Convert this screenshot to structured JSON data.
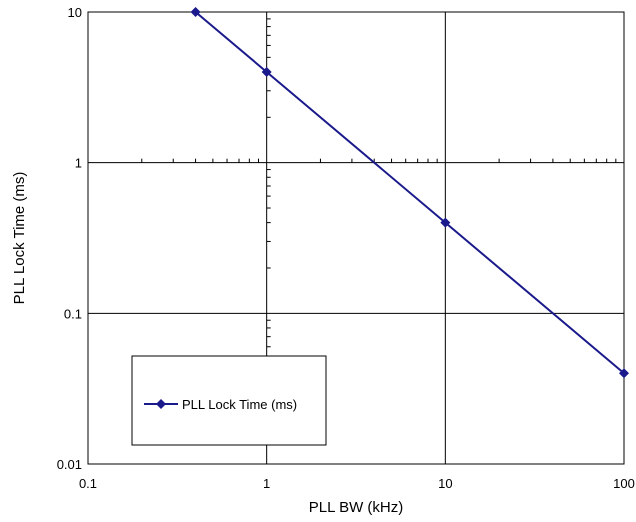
{
  "chart_data": {
    "type": "line",
    "title": "",
    "xlabel": "PLL BW (kHz)",
    "ylabel": "PLL Lock Time (ms)",
    "x_scale": "log",
    "y_scale": "log",
    "xlim": [
      0.1,
      100
    ],
    "ylim": [
      0.01,
      10
    ],
    "x_ticks": [
      "0.1",
      "1",
      "10",
      "100"
    ],
    "y_ticks": [
      "0.01",
      "0.1",
      "1",
      "10"
    ],
    "grid": "major gridlines on both axes",
    "legend_position": "lower-left",
    "series": [
      {
        "name": "PLL Lock Time (ms)",
        "marker": "diamond",
        "color": "#1a1a8c",
        "points": [
          {
            "x": 0.4,
            "y": 10
          },
          {
            "x": 1,
            "y": 4
          },
          {
            "x": 10,
            "y": 0.4
          },
          {
            "x": 100,
            "y": 0.04
          }
        ]
      }
    ]
  }
}
